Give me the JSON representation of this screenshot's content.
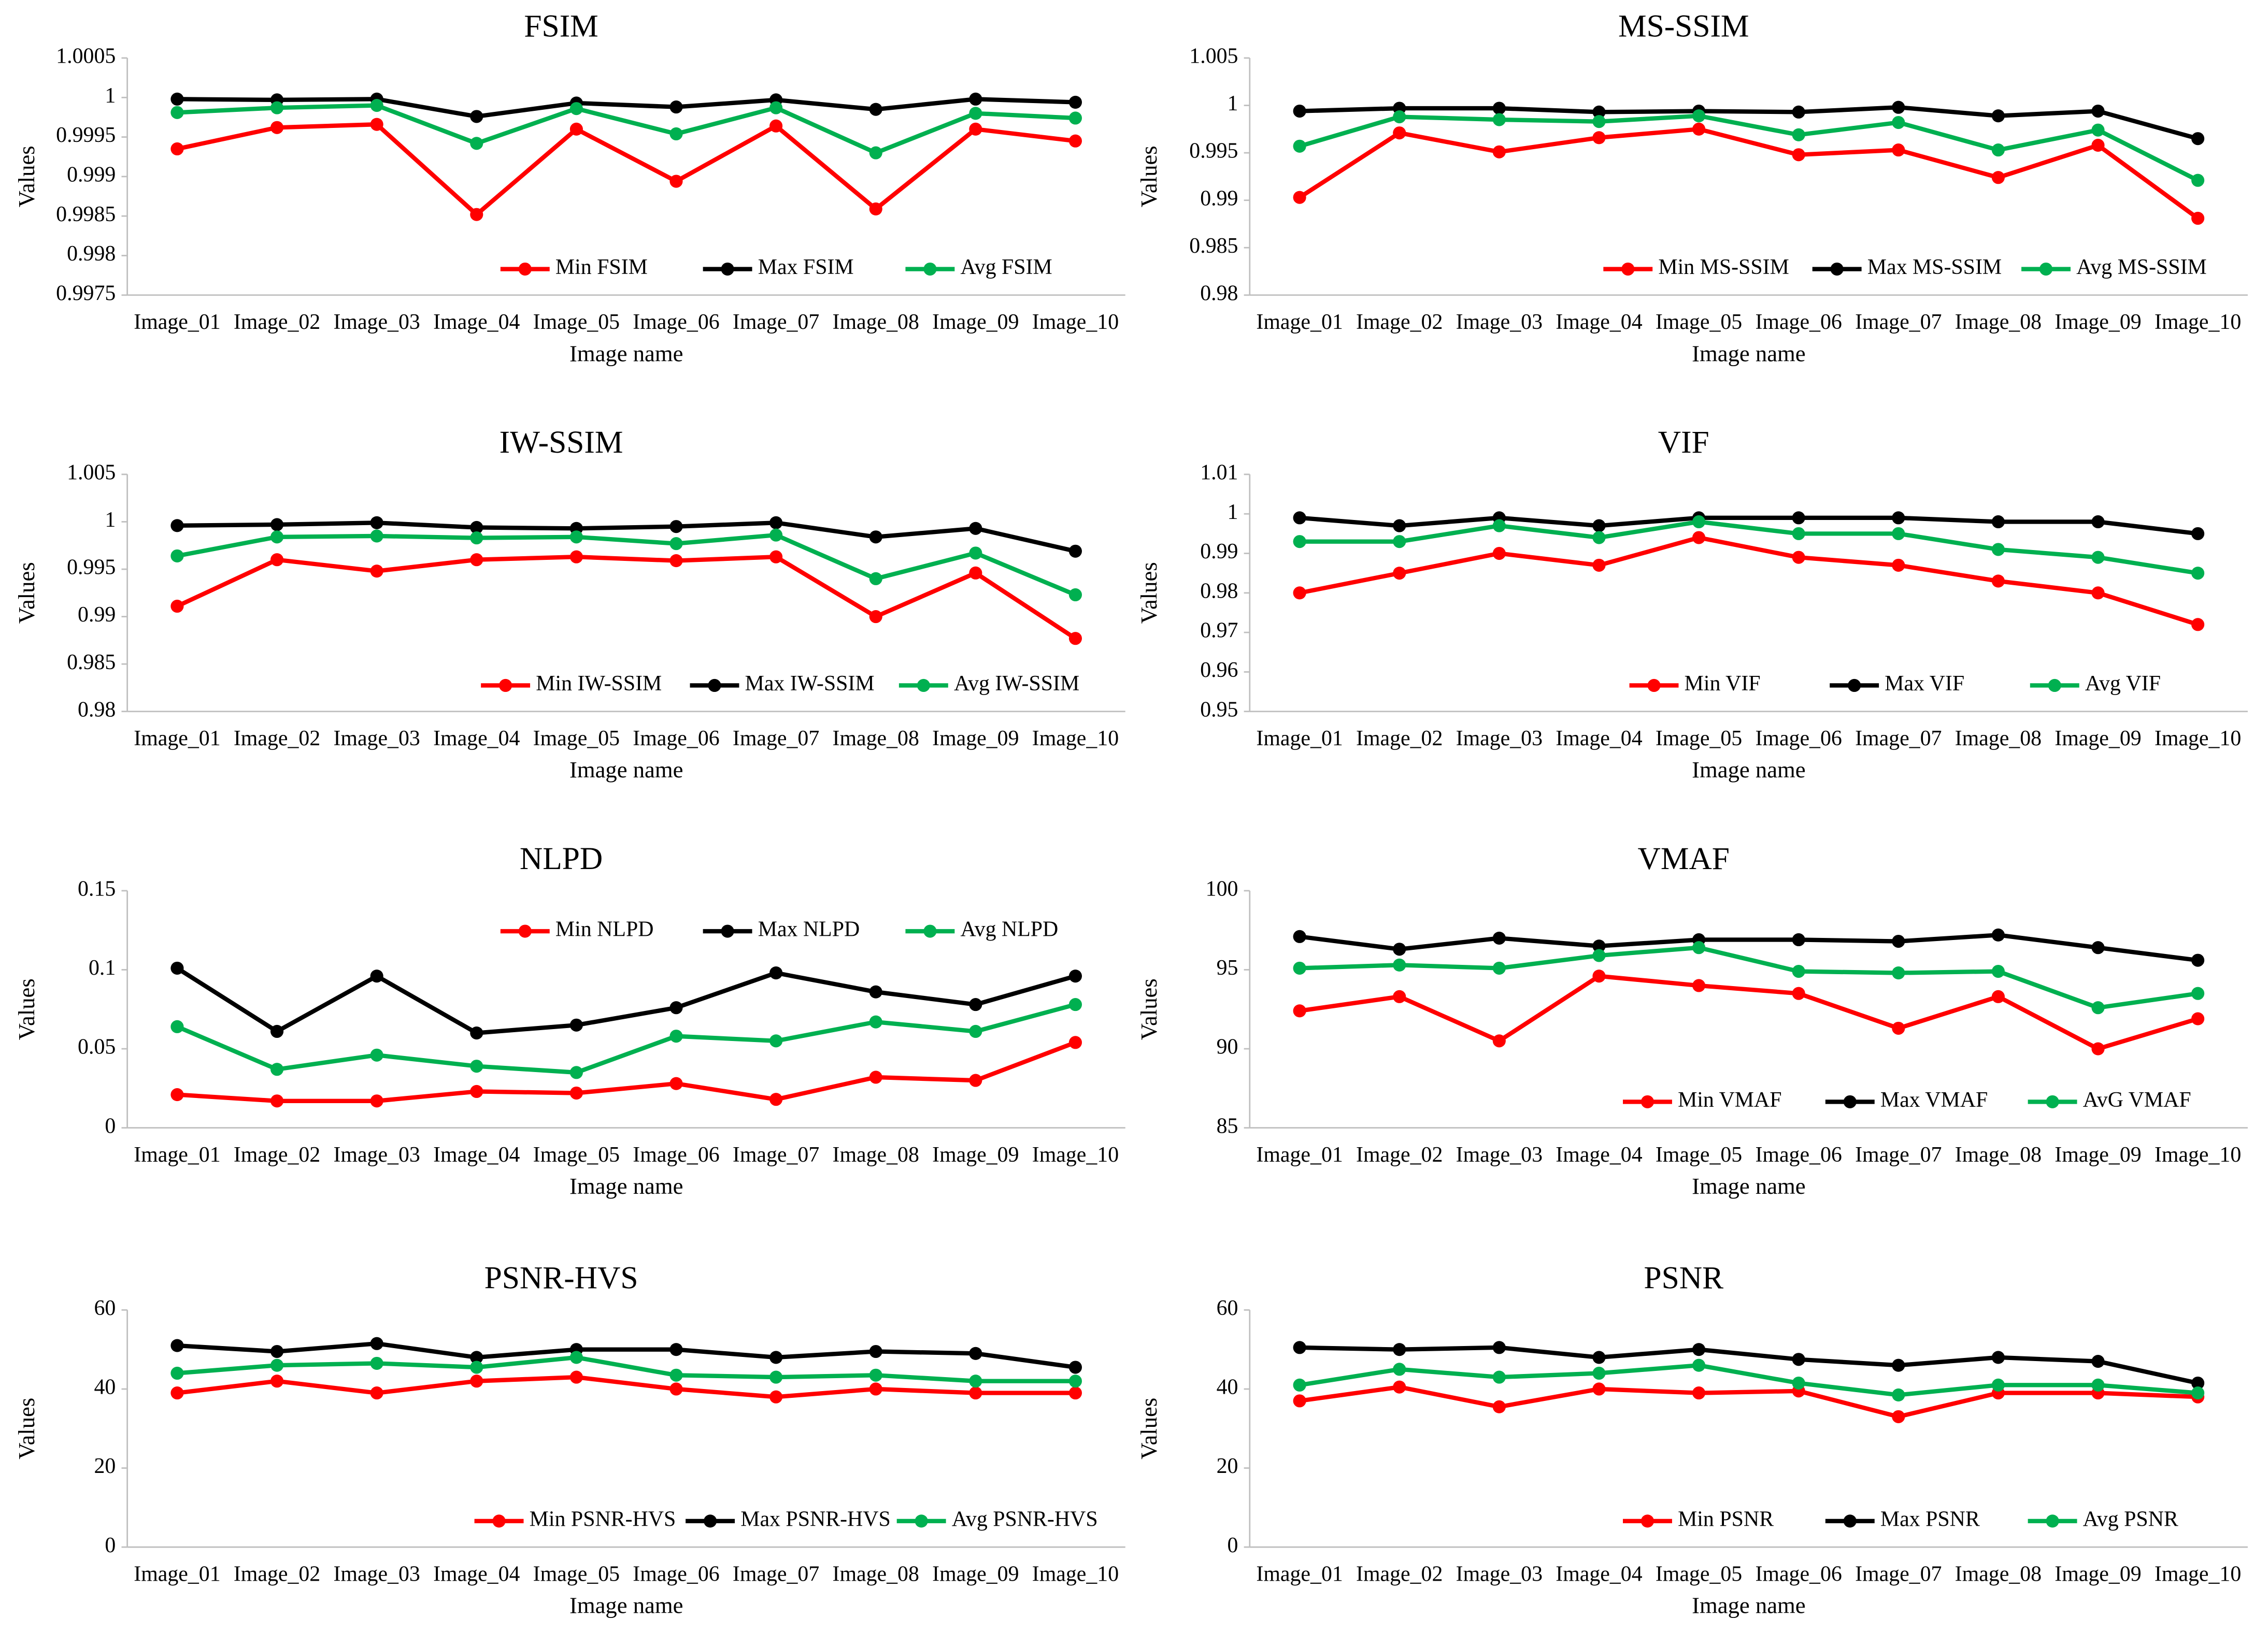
{
  "chart_data": [
    {
      "type": "line",
      "title": "FSIM",
      "x_label": "Image name",
      "y_label": "Values",
      "categories": [
        "Image_01",
        "Image_02",
        "Image_03",
        "Image_04",
        "Image_05",
        "Image_06",
        "Image_07",
        "Image_08",
        "Image_09",
        "Image_10"
      ],
      "series": [
        {
          "name": "Min FSIM",
          "color": "#ff0000",
          "values": [
            0.99935,
            0.99962,
            0.99966,
            0.99852,
            0.9996,
            0.99894,
            0.99964,
            0.99859,
            0.9996,
            0.99945
          ]
        },
        {
          "name": "Max FSIM",
          "color": "#000000",
          "values": [
            0.99998,
            0.99997,
            0.99998,
            0.99976,
            0.99993,
            0.99988,
            0.99997,
            0.99985,
            0.99998,
            0.99994
          ]
        },
        {
          "name": "Avg FSIM",
          "color": "#00b050",
          "values": [
            0.99981,
            0.99987,
            0.9999,
            0.99942,
            0.99986,
            0.99954,
            0.99987,
            0.9993,
            0.9998,
            0.99974
          ]
        }
      ],
      "ylim": [
        0.9975,
        1.0005
      ],
      "yticks": [
        0.9975,
        0.998,
        0.9985,
        0.999,
        0.9995,
        1,
        1.0005
      ],
      "legend": "lower right"
    },
    {
      "type": "line",
      "title": "MS-SSIM",
      "x_label": "Image name",
      "y_label": "Values",
      "categories": [
        "Image_01",
        "Image_02",
        "Image_03",
        "Image_04",
        "Image_05",
        "Image_06",
        "Image_07",
        "Image_08",
        "Image_09",
        "Image_10"
      ],
      "series": [
        {
          "name": "Min MS-SSIM",
          "color": "#ff0000",
          "values": [
            0.9903,
            0.9971,
            0.9951,
            0.9966,
            0.9975,
            0.9948,
            0.9953,
            0.9924,
            0.9958,
            0.9881
          ]
        },
        {
          "name": "Max MS-SSIM",
          "color": "#000000",
          "values": [
            0.9994,
            0.9997,
            0.9997,
            0.9993,
            0.9994,
            0.9993,
            0.9998,
            0.9989,
            0.9994,
            0.9965
          ]
        },
        {
          "name": "Avg MS-SSIM",
          "color": "#00b050",
          "values": [
            0.9957,
            0.9988,
            0.9985,
            0.9983,
            0.9989,
            0.9969,
            0.9982,
            0.9953,
            0.9974,
            0.9921
          ]
        }
      ],
      "ylim": [
        0.98,
        1.005
      ],
      "yticks": [
        0.98,
        0.985,
        0.99,
        0.995,
        1,
        1.005
      ],
      "legend": "lower right"
    },
    {
      "type": "line",
      "title": "IW-SSIM",
      "x_label": "Image name",
      "y_label": "Values",
      "categories": [
        "Image_01",
        "Image_02",
        "Image_03",
        "Image_04",
        "Image_05",
        "Image_06",
        "Image_07",
        "Image_08",
        "Image_09",
        "Image_10"
      ],
      "series": [
        {
          "name": "Min IW-SSIM",
          "color": "#ff0000",
          "values": [
            0.9911,
            0.996,
            0.9948,
            0.996,
            0.9963,
            0.9959,
            0.9963,
            0.99,
            0.9946,
            0.9877
          ]
        },
        {
          "name": "Max IW-SSIM",
          "color": "#000000",
          "values": [
            0.9996,
            0.9997,
            0.9999,
            0.9994,
            0.9993,
            0.9995,
            0.9999,
            0.9984,
            0.9993,
            0.9969
          ]
        },
        {
          "name": "Avg IW-SSIM",
          "color": "#00b050",
          "values": [
            0.9964,
            0.9984,
            0.9985,
            0.9983,
            0.9984,
            0.9977,
            0.9986,
            0.994,
            0.9967,
            0.9923
          ]
        }
      ],
      "ylim": [
        0.98,
        1.005
      ],
      "yticks": [
        0.98,
        0.985,
        0.99,
        0.995,
        1,
        1.005
      ],
      "legend": "lower right"
    },
    {
      "type": "line",
      "title": "VIF",
      "x_label": "Image name",
      "y_label": "Values",
      "categories": [
        "Image_01",
        "Image_02",
        "Image_03",
        "Image_04",
        "Image_05",
        "Image_06",
        "Image_07",
        "Image_08",
        "Image_09",
        "Image_10"
      ],
      "series": [
        {
          "name": "Min VIF",
          "color": "#ff0000",
          "values": [
            0.98,
            0.985,
            0.99,
            0.987,
            0.994,
            0.989,
            0.987,
            0.983,
            0.98,
            0.972
          ]
        },
        {
          "name": "Max VIF",
          "color": "#000000",
          "values": [
            0.999,
            0.997,
            0.999,
            0.997,
            0.999,
            0.999,
            0.999,
            0.998,
            0.998,
            0.995
          ]
        },
        {
          "name": "Avg VIF",
          "color": "#00b050",
          "values": [
            0.993,
            0.993,
            0.997,
            0.994,
            0.998,
            0.995,
            0.995,
            0.991,
            0.989,
            0.985
          ]
        }
      ],
      "ylim": [
        0.95,
        1.01
      ],
      "yticks": [
        0.95,
        0.96,
        0.97,
        0.98,
        0.99,
        1,
        1.01
      ],
      "legend": "lower right"
    },
    {
      "type": "line",
      "title": "NLPD",
      "x_label": "Image name",
      "y_label": "Values",
      "categories": [
        "Image_01",
        "Image_02",
        "Image_03",
        "Image_04",
        "Image_05",
        "Image_06",
        "Image_07",
        "Image_08",
        "Image_09",
        "Image_10"
      ],
      "series": [
        {
          "name": "Min NLPD",
          "color": "#ff0000",
          "values": [
            0.021,
            0.017,
            0.017,
            0.023,
            0.022,
            0.028,
            0.018,
            0.032,
            0.03,
            0.054
          ]
        },
        {
          "name": "Max NLPD",
          "color": "#000000",
          "values": [
            0.101,
            0.061,
            0.096,
            0.06,
            0.065,
            0.076,
            0.098,
            0.086,
            0.078,
            0.096
          ]
        },
        {
          "name": "Avg NLPD",
          "color": "#00b050",
          "values": [
            0.064,
            0.037,
            0.046,
            0.039,
            0.035,
            0.058,
            0.055,
            0.067,
            0.061,
            0.078
          ]
        }
      ],
      "ylim": [
        0,
        0.15
      ],
      "yticks": [
        0,
        0.05,
        0.1,
        0.15
      ],
      "legend": "upper right"
    },
    {
      "type": "line",
      "title": "VMAF",
      "x_label": "Image name",
      "y_label": "Values",
      "categories": [
        "Image_01",
        "Image_02",
        "Image_03",
        "Image_04",
        "Image_05",
        "Image_06",
        "Image_07",
        "Image_08",
        "Image_09",
        "Image_10"
      ],
      "series": [
        {
          "name": "Min VMAF",
          "color": "#ff0000",
          "values": [
            92.4,
            93.3,
            90.5,
            94.6,
            94,
            93.5,
            91.3,
            93.3,
            90,
            91.9
          ]
        },
        {
          "name": "Max VMAF",
          "color": "#000000",
          "values": [
            97.1,
            96.3,
            97,
            96.5,
            96.9,
            96.9,
            96.8,
            97.2,
            96.4,
            95.6
          ]
        },
        {
          "name": "AvG VMAF",
          "color": "#00b050",
          "values": [
            95.1,
            95.3,
            95.1,
            95.9,
            96.4,
            94.9,
            94.8,
            94.9,
            92.6,
            93.5
          ]
        }
      ],
      "ylim": [
        85,
        100
      ],
      "yticks": [
        85,
        90,
        95,
        100
      ],
      "legend": "lower right"
    },
    {
      "type": "line",
      "title": "PSNR-HVS",
      "x_label": "Image name",
      "y_label": "Values",
      "categories": [
        "Image_01",
        "Image_02",
        "Image_03",
        "Image_04",
        "Image_05",
        "Image_06",
        "Image_07",
        "Image_08",
        "Image_09",
        "Image_10"
      ],
      "series": [
        {
          "name": "Min PSNR-HVS",
          "color": "#ff0000",
          "values": [
            39,
            42,
            39,
            42,
            43,
            40,
            38,
            40,
            39,
            39
          ]
        },
        {
          "name": "Max PSNR-HVS",
          "color": "#000000",
          "values": [
            51,
            49.5,
            51.5,
            48,
            50,
            50,
            48,
            49.5,
            49,
            45.5
          ]
        },
        {
          "name": "Avg PSNR-HVS",
          "color": "#00b050",
          "values": [
            44,
            46,
            46.5,
            45.5,
            48,
            43.5,
            43,
            43.5,
            42,
            42
          ]
        }
      ],
      "ylim": [
        0,
        60
      ],
      "yticks": [
        0,
        20,
        40,
        60
      ],
      "legend": "lower right"
    },
    {
      "type": "line",
      "title": "PSNR",
      "x_label": "Image name",
      "y_label": "Values",
      "categories": [
        "Image_01",
        "Image_02",
        "Image_03",
        "Image_04",
        "Image_05",
        "Image_06",
        "Image_07",
        "Image_08",
        "Image_09",
        "Image_10"
      ],
      "series": [
        {
          "name": "Min PSNR",
          "color": "#ff0000",
          "values": [
            37,
            40.5,
            35.5,
            40,
            39,
            39.5,
            33,
            39,
            39,
            38
          ]
        },
        {
          "name": "Max PSNR",
          "color": "#000000",
          "values": [
            50.5,
            50,
            50.5,
            48,
            50,
            47.5,
            46,
            48,
            47,
            41.5
          ]
        },
        {
          "name": "Avg PSNR",
          "color": "#00b050",
          "values": [
            41,
            45,
            43,
            44,
            46,
            41.5,
            38.5,
            41,
            41,
            39
          ]
        }
      ],
      "ylim": [
        0,
        60
      ],
      "yticks": [
        0,
        20,
        40,
        60
      ],
      "legend": "lower right"
    }
  ]
}
